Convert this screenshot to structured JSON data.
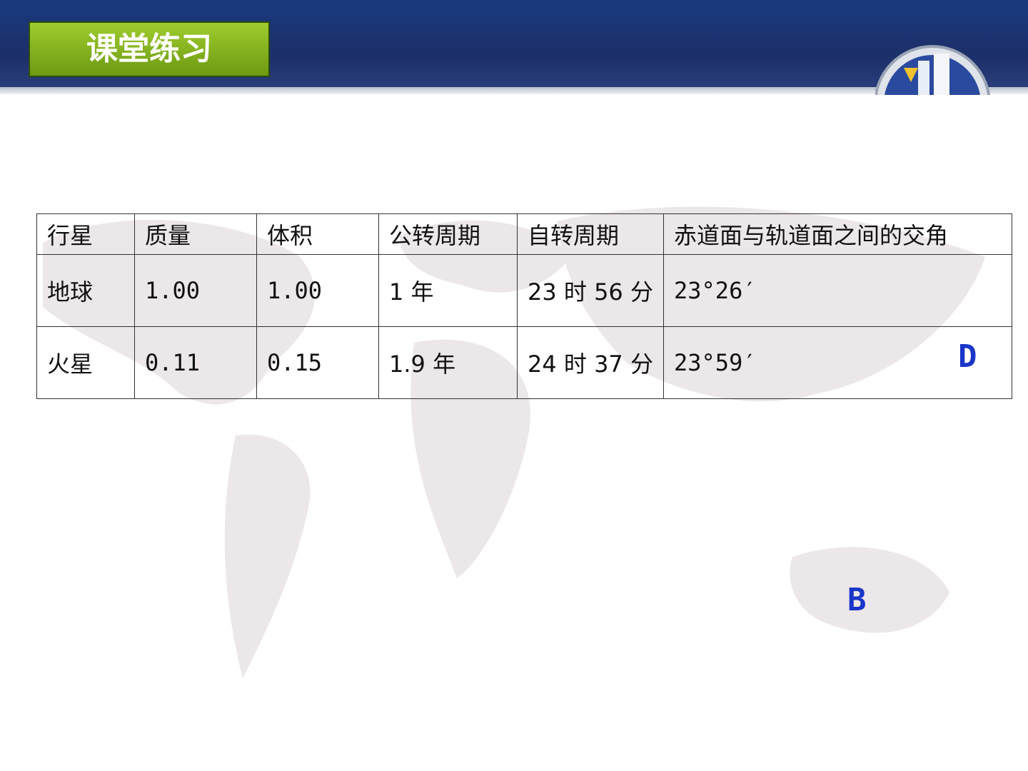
{
  "header": {
    "title": "课堂练习"
  },
  "table": {
    "header": [
      "行星",
      "质量",
      "体积",
      "公转周期",
      "自转周期",
      "赤道面与轨道面之间的交角"
    ],
    "rows": [
      [
        "地球",
        "1.00",
        "1.00",
        "1 年",
        "23 时 56 分",
        "23°26′"
      ],
      [
        "火星",
        "0.11",
        "0.15",
        "1.9 年",
        "24 时 37 分",
        "23°59′"
      ]
    ]
  },
  "answers": [
    "D",
    "B"
  ]
}
